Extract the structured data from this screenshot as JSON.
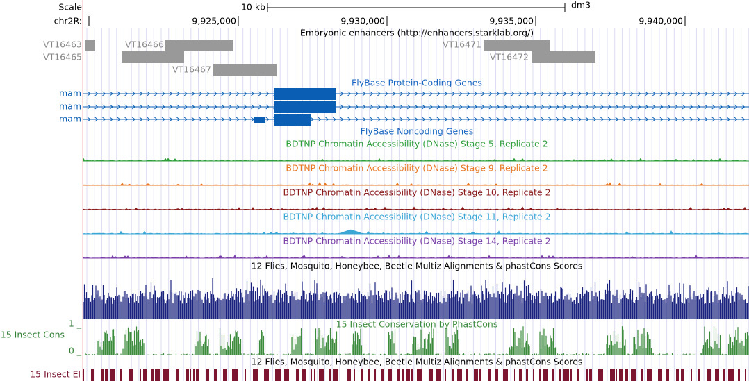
{
  "ruler": {
    "scale_label": "Scale",
    "scale_bar": "10 kb",
    "assembly": "dm3",
    "chrom": "chr2R:",
    "positions": [
      "9,925,000",
      "9,930,000",
      "9,935,000",
      "9,940,000"
    ]
  },
  "enhancers": {
    "title": "Embryonic enhancers (http://enhancers.starklab.org/)",
    "items": [
      "VT16463",
      "VT16465",
      "VT16466",
      "VT16467",
      "VT16471",
      "VT16472"
    ]
  },
  "protein_genes": {
    "title": "FlyBase Protein-Coding Genes",
    "genes": [
      "mam",
      "mam",
      "mam"
    ]
  },
  "noncoding_genes": {
    "title": "FlyBase Noncoding Genes"
  },
  "dnase_tracks": [
    "BDTNP Chromatin Accessibility (DNase) Stage 5, Replicate 2",
    "BDTNP Chromatin Accessibility (DNase) Stage 9, Replicate 2",
    "BDTNP Chromatin Accessibility (DNase) Stage 10, Replicate 2",
    "BDTNP Chromatin Accessibility (DNase) Stage 11, Replicate 2",
    "BDTNP Chromatin Accessibility (DNase) Stage 14, Replicate 2"
  ],
  "multiz": {
    "title": "12 Flies, Mosquito, Honeybee, Beetle Multiz Alignments & phastCons Scores"
  },
  "phastcons": {
    "label": "15 Insect Cons",
    "title": "15 Insect Conservation by PhastCons",
    "top": "1 _",
    "bottom": "0 _"
  },
  "elements": {
    "title": "12 Flies, Mosquito, Honeybee, Beetle Multiz Alignments & phastCons Scores",
    "label": "15 Insect El"
  }
}
